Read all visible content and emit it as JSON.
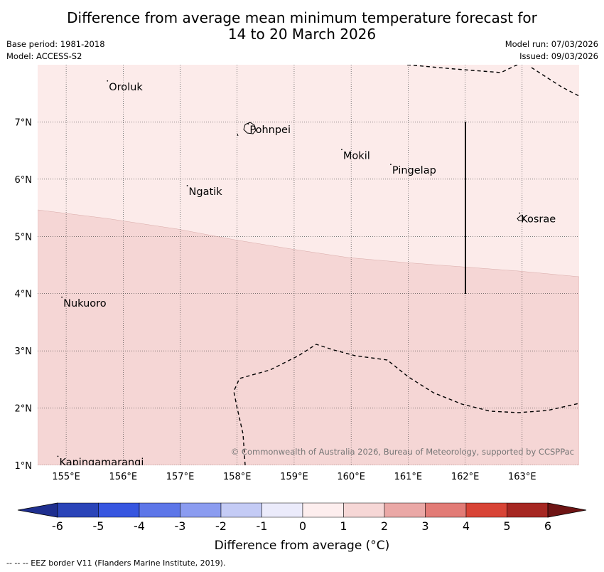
{
  "title": {
    "line1": "Difference from average mean minimum temperature forecast for",
    "line2": "14 to 20 March 2026"
  },
  "meta": {
    "base_period": "Base period: 1981-2018",
    "model": "Model: ACCESS-S2",
    "model_run": "Model run: 07/03/2026",
    "issued": "Issued: 09/03/2026"
  },
  "map": {
    "lon_range": [
      154.5,
      164
    ],
    "lat_range": [
      1,
      8
    ],
    "x_ticks": [
      "155°E",
      "156°E",
      "157°E",
      "158°E",
      "159°E",
      "160°E",
      "161°E",
      "162°E",
      "163°E"
    ],
    "y_ticks": [
      "1°N",
      "2°N",
      "3°N",
      "4°N",
      "5°N",
      "6°N",
      "7°N"
    ],
    "places": [
      {
        "name": "Oroluk",
        "lon": 155.75,
        "lat": 7.63
      },
      {
        "name": "Pohnpei",
        "lon": 158.22,
        "lat": 6.88
      },
      {
        "name": "Mokil",
        "lon": 159.86,
        "lat": 6.43
      },
      {
        "name": "Pingelap",
        "lon": 160.72,
        "lat": 6.17
      },
      {
        "name": "Ngatik",
        "lon": 157.15,
        "lat": 5.8
      },
      {
        "name": "Kosrae",
        "lon": 162.98,
        "lat": 5.32
      },
      {
        "name": "Nukuoro",
        "lon": 154.95,
        "lat": 3.85
      },
      {
        "name": "Kapingamarangi",
        "lon": 154.88,
        "lat": 1.07
      }
    ],
    "anomaly_regions": [
      {
        "range": "0 to 1",
        "color": "#fcebea"
      },
      {
        "range": "1 to 2",
        "color": "#f5d6d5"
      }
    ],
    "copyright": "© Commonwealth of Australia 2026, Bureau of Meteorology, supported by CCSPPac"
  },
  "colorbar": {
    "ticks": [
      "-6",
      "-5",
      "-4",
      "-3",
      "-2",
      "-1",
      "0",
      "1",
      "2",
      "3",
      "4",
      "5",
      "6"
    ],
    "colors": [
      "#1f2f8f",
      "#2a44b8",
      "#3756e0",
      "#5d76e8",
      "#8b9cf0",
      "#c4cbf5",
      "#ebebfb",
      "#fdeeee",
      "#f6d7d6",
      "#eaa8a6",
      "#e27b76",
      "#d84436",
      "#a62722",
      "#6e1414"
    ],
    "label": "Difference from average (°C)"
  },
  "footer": "--  --  -- EEZ border V11 (Flanders Marine Institute, 2019)."
}
